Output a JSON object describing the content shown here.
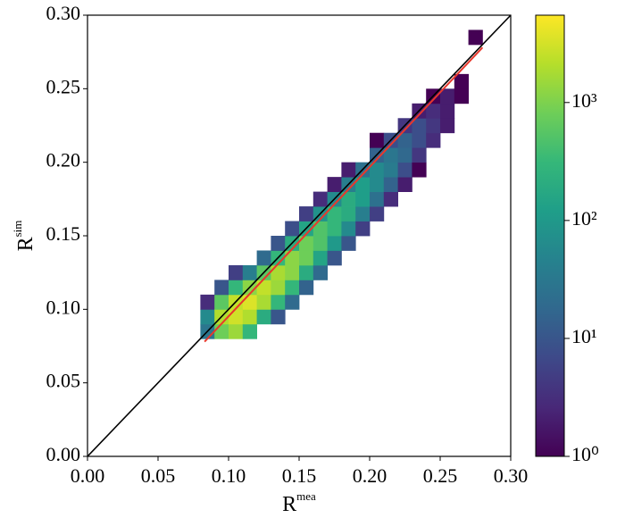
{
  "chart_data": {
    "type": "hist2d",
    "xlabel": {
      "base": "R",
      "sup": "mea"
    },
    "ylabel": {
      "base": "R",
      "sup": "sim"
    },
    "xlim": [
      0,
      0.3
    ],
    "ylim": [
      0,
      0.3
    ],
    "xticks": [
      {
        "value": 0,
        "label": "0.00"
      },
      {
        "value": 0.05,
        "label": "0.05"
      },
      {
        "value": 0.1,
        "label": "0.10"
      },
      {
        "value": 0.15,
        "label": "0.15"
      },
      {
        "value": 0.2,
        "label": "0.20"
      },
      {
        "value": 0.25,
        "label": "0.25"
      },
      {
        "value": 0.3,
        "label": "0.30"
      }
    ],
    "yticks": [
      {
        "value": 0,
        "label": "0.00"
      },
      {
        "value": 0.05,
        "label": "0.05"
      },
      {
        "value": 0.1,
        "label": "0.10"
      },
      {
        "value": 0.15,
        "label": "0.15"
      },
      {
        "value": 0.2,
        "label": "0.20"
      },
      {
        "value": 0.25,
        "label": "0.25"
      },
      {
        "value": 0.3,
        "label": "0.30"
      }
    ],
    "bin_size": 0.01,
    "colormap": "viridis",
    "color_scale": "log",
    "clim": [
      1,
      5500
    ],
    "cticks": [
      {
        "value": 1,
        "label": "10⁰"
      },
      {
        "value": 10,
        "label": "10¹"
      },
      {
        "value": 100,
        "label": "10²"
      },
      {
        "value": 1000,
        "label": "10³"
      }
    ],
    "x": [
      0.08,
      0.08,
      0.08,
      0.09,
      0.09,
      0.09,
      0.09,
      0.1,
      0.1,
      0.1,
      0.1,
      0.1,
      0.11,
      0.11,
      0.11,
      0.11,
      0.11,
      0.12,
      0.12,
      0.12,
      0.12,
      0.12,
      0.13,
      0.13,
      0.13,
      0.13,
      0.13,
      0.13,
      0.14,
      0.14,
      0.14,
      0.14,
      0.14,
      0.14,
      0.15,
      0.15,
      0.15,
      0.15,
      0.15,
      0.15,
      0.16,
      0.16,
      0.16,
      0.16,
      0.16,
      0.16,
      0.17,
      0.17,
      0.17,
      0.17,
      0.17,
      0.17,
      0.18,
      0.18,
      0.18,
      0.18,
      0.18,
      0.18,
      0.19,
      0.19,
      0.19,
      0.19,
      0.19,
      0.2,
      0.2,
      0.2,
      0.2,
      0.2,
      0.2,
      0.21,
      0.21,
      0.21,
      0.21,
      0.21,
      0.22,
      0.22,
      0.22,
      0.22,
      0.22,
      0.23,
      0.23,
      0.23,
      0.23,
      0.23,
      0.24,
      0.24,
      0.24,
      0.24,
      0.25,
      0.25,
      0.25,
      0.26,
      0.26,
      0.27
    ],
    "y": [
      0.08,
      0.09,
      0.1,
      0.08,
      0.09,
      0.1,
      0.11,
      0.08,
      0.09,
      0.1,
      0.11,
      0.12,
      0.08,
      0.09,
      0.1,
      0.11,
      0.12,
      0.09,
      0.1,
      0.11,
      0.12,
      0.13,
      0.09,
      0.1,
      0.11,
      0.12,
      0.13,
      0.14,
      0.1,
      0.11,
      0.12,
      0.13,
      0.14,
      0.15,
      0.11,
      0.12,
      0.13,
      0.14,
      0.15,
      0.16,
      0.12,
      0.13,
      0.14,
      0.15,
      0.16,
      0.17,
      0.13,
      0.14,
      0.15,
      0.16,
      0.17,
      0.18,
      0.14,
      0.15,
      0.16,
      0.17,
      0.18,
      0.19,
      0.15,
      0.16,
      0.17,
      0.18,
      0.19,
      0.16,
      0.17,
      0.18,
      0.19,
      0.2,
      0.21,
      0.17,
      0.18,
      0.19,
      0.2,
      0.21,
      0.18,
      0.19,
      0.2,
      0.21,
      0.22,
      0.19,
      0.2,
      0.21,
      0.22,
      0.23,
      0.21,
      0.22,
      0.23,
      0.24,
      0.22,
      0.23,
      0.24,
      0.24,
      0.25,
      0.28
    ],
    "values": [
      30,
      60,
      3,
      800,
      2000,
      600,
      10,
      1500,
      3000,
      2500,
      300,
      5,
      300,
      2000,
      3500,
      1200,
      40,
      200,
      1800,
      2500,
      600,
      20,
      10,
      300,
      1500,
      1800,
      300,
      10,
      20,
      300,
      1200,
      1200,
      200,
      8,
      15,
      200,
      800,
      800,
      150,
      5,
      20,
      150,
      500,
      500,
      80,
      3,
      10,
      100,
      300,
      300,
      60,
      2,
      10,
      60,
      200,
      200,
      40,
      2,
      5,
      40,
      120,
      120,
      25,
      5,
      25,
      60,
      60,
      15,
      1,
      3,
      15,
      35,
      30,
      8,
      2,
      8,
      18,
      15,
      4,
      1,
      4,
      8,
      8,
      2,
      3,
      4,
      3,
      1,
      2,
      2,
      2,
      1,
      1,
      1
    ],
    "lines": [
      {
        "color": "#000000",
        "x": [
          0,
          0.3
        ],
        "y": [
          0,
          0.3
        ]
      },
      {
        "color": "#e8382c",
        "x": [
          0.083,
          0.28
        ],
        "y": [
          0.078,
          0.278
        ]
      }
    ]
  }
}
